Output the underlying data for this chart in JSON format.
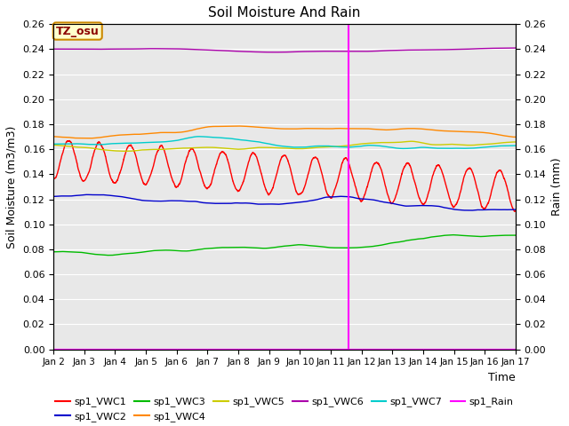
{
  "title": "Soil Moisture And Rain",
  "xlabel": "Time",
  "ylabel_left": "Soil Moisture (m3/m3)",
  "ylabel_right": "Rain (mm)",
  "ylim": [
    0.0,
    0.26
  ],
  "xlim_days": [
    2,
    17
  ],
  "xtick_labels": [
    "Jan 2",
    "Jan 3",
    "Jan 4",
    "Jan 5",
    "Jan 6",
    "Jan 7",
    "Jan 8",
    "Jan 9",
    "Jan 10",
    "Jan 11",
    "Jan 12",
    "Jan 13",
    "Jan 14",
    "Jan 15",
    "Jan 16",
    "Jan 17"
  ],
  "vline_day": 11.58,
  "vline_color": "magenta",
  "annotation_label": "TZ_osu",
  "bg_color": "#e8e8e8",
  "grid_color": "#ffffff",
  "series_colors": {
    "sp1_VWC1": "#ff0000",
    "sp1_VWC2": "#0000cc",
    "sp1_VWC3": "#00bb00",
    "sp1_VWC4": "#ff8800",
    "sp1_VWC5": "#cccc00",
    "sp1_VWC6": "#aa00aa",
    "sp1_VWC7": "#00cccc",
    "sp1_Rain": "#ff00ff"
  },
  "legend_order": [
    "sp1_VWC1",
    "sp1_VWC2",
    "sp1_VWC3",
    "sp1_VWC4",
    "sp1_VWC5",
    "sp1_VWC6",
    "sp1_VWC7",
    "sp1_Rain"
  ]
}
